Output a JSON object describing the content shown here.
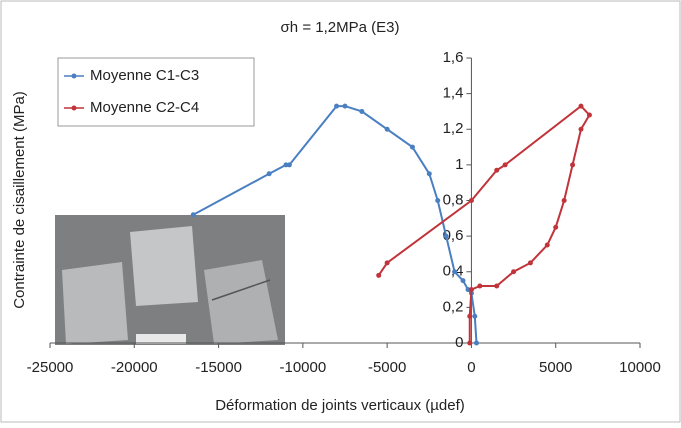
{
  "chart_data": {
    "type": "line",
    "title": "σh = 1,2MPa (E3)",
    "x_label": "Déformation de joints verticaux (µdef)",
    "y_label": "Contrainte de cisaillement (MPa)",
    "xlim": [
      -25000,
      10000
    ],
    "xticks": [
      -25000,
      -20000,
      -15000,
      -10000,
      -5000,
      0,
      5000,
      10000
    ],
    "ylim": [
      0,
      1.6
    ],
    "yticks": [
      0,
      {
        "value": 0.2,
        "label": "0,2"
      },
      {
        "value": 0.4,
        "label": "0,4"
      },
      {
        "value": 0.6,
        "label": "0,6"
      },
      {
        "value": 0.8,
        "label": "0,8"
      },
      1,
      {
        "value": 1.2,
        "label": "1,2"
      },
      {
        "value": 1.4,
        "label": "1,4"
      },
      {
        "value": 1.6,
        "label": "1,6"
      }
    ],
    "legend": "top-left",
    "series": [
      {
        "name": "Moyenne C1-C3",
        "color": "#4a7fc1",
        "x": [
          -16500,
          -12000,
          -11000,
          -10800,
          -8000,
          -7500,
          -6500,
          -5000,
          -3500,
          -2500,
          -2000,
          -1500,
          -1000,
          -500,
          -200,
          0,
          200,
          300
        ],
        "values": [
          0.72,
          0.95,
          1.0,
          1.0,
          1.33,
          1.33,
          1.3,
          1.2,
          1.1,
          0.95,
          0.8,
          0.6,
          0.4,
          0.35,
          0.3,
          0.28,
          0.15,
          0
        ]
      },
      {
        "name": "Moyenne C2-C4",
        "color": "#c0343a",
        "x": [
          -5500,
          -5000,
          0,
          1500,
          2000,
          6500,
          7000,
          6500,
          6000,
          5500,
          5000,
          4500,
          3500,
          2500,
          1500,
          500,
          0,
          -100,
          -100
        ],
        "values": [
          0.38,
          0.45,
          0.8,
          0.97,
          1.0,
          1.33,
          1.28,
          1.2,
          1.0,
          0.8,
          0.65,
          0.55,
          0.45,
          0.4,
          0.32,
          0.32,
          0.3,
          0.15,
          0
        ]
      }
    ]
  }
}
